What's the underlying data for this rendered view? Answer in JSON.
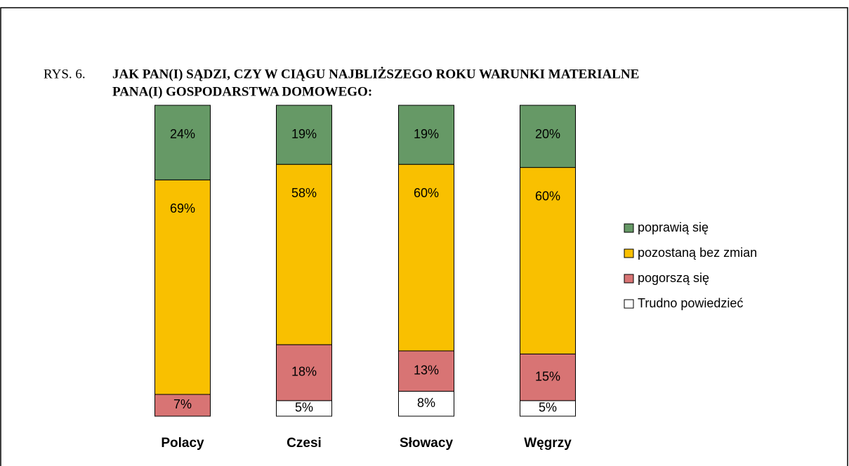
{
  "chart_data": {
    "type": "stacked-bar",
    "figure_label": "RYS. 6.",
    "title": [
      "JAK PAN(I) SĄDZI, CZY W CIĄGU NAJBLIŻSZEGO ROKU WARUNKI MATERIALNE",
      "PANA(I) GOSPODARSTWA DOMOWEGO:"
    ],
    "categories": [
      "Polacy",
      "Czesi",
      "Słowacy",
      "Węgrzy"
    ],
    "series": [
      {
        "name": "Trudno powiedzieć",
        "color": "#ffffff",
        "values": [
          null,
          5,
          8,
          5
        ],
        "value_labels": [
          null,
          "5%",
          "8%",
          "5%"
        ]
      },
      {
        "name": "pogorszą się",
        "color": "#d87474",
        "values": [
          7,
          18,
          13,
          15
        ],
        "value_labels": [
          "7%",
          "18%",
          "13%",
          "15%"
        ]
      },
      {
        "name": "pozostaną bez zmian",
        "color": "#f9c000",
        "values": [
          69,
          58,
          60,
          60
        ],
        "value_labels": [
          "69%",
          "58%",
          "60%",
          "60%"
        ]
      },
      {
        "name": "poprawią się",
        "color": "#669966",
        "values": [
          24,
          19,
          19,
          20
        ],
        "value_labels": [
          "24%",
          "19%",
          "19%",
          "20%"
        ]
      }
    ]
  }
}
